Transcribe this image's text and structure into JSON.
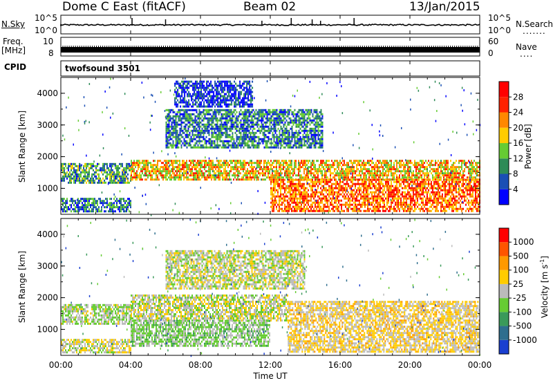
{
  "header": {
    "title": "Dome C East (fitACF)",
    "beam": "Beam 02",
    "date": "13/Jan/2015"
  },
  "nsky_panel": {
    "label": "N.Sky",
    "ticks_left": [
      "10^5",
      "10^0"
    ],
    "ticks_right": [
      "10^5",
      "10^0"
    ],
    "right_label": "N.Search",
    "right_dots": "......."
  },
  "freq_panel": {
    "label_line1": "Freq.",
    "label_line2": "[MHz]",
    "ticks_left": [
      "10",
      "8"
    ],
    "ticks_right": [
      "60",
      "0"
    ],
    "right_label": "Nave",
    "right_dots": "...."
  },
  "cpid": {
    "label": "CPID",
    "value": "twofsound 3501"
  },
  "power_panel": {
    "ylabel": "Slant Range [km]",
    "yticks": [
      "4000",
      "3000",
      "2000",
      "1000"
    ],
    "colorbar_label": "Power [dB]",
    "colorbar_ticks": [
      "28",
      "24",
      "20",
      "16",
      "12",
      "8",
      "4"
    ],
    "colors": [
      "#0000ff",
      "#1a4fb5",
      "#2e8b57",
      "#66cc33",
      "#ffcc00",
      "#ff8800",
      "#ff2200",
      "#ff0000"
    ]
  },
  "velocity_panel": {
    "ylabel": "Slant Range [km]",
    "yticks": [
      "4000",
      "3000",
      "2000",
      "1000"
    ],
    "colorbar_label": "Velocity [m s^-1]",
    "colorbar_ticks": [
      "1000",
      "500",
      "100",
      "25",
      "-25",
      "-100",
      "-500",
      "-1000"
    ],
    "colors": [
      "#1a3fd0",
      "#2e6e8e",
      "#3a9a5a",
      "#66cc33",
      "#bbbbbb",
      "#ffcc00",
      "#ff9900",
      "#ff5500",
      "#ff0000"
    ]
  },
  "xaxis": {
    "ticks": [
      "00:00",
      "04:00",
      "08:00",
      "12:00",
      "16:00",
      "20:00",
      "00:00"
    ],
    "label": "Time UT"
  },
  "chart_data": {
    "type": "heatmap",
    "x_range_hours": [
      0,
      24
    ],
    "y_range_km": [
      180,
      4500
    ],
    "panels": [
      {
        "quantity": "Power",
        "unit": "dB",
        "scale": [
          0,
          30
        ],
        "bands": [
          {
            "t0": 0,
            "t1": 4,
            "r0": 1200,
            "r1": 1800,
            "level": 10
          },
          {
            "t0": 0,
            "t1": 4,
            "r0": 300,
            "r1": 700,
            "level": 8
          },
          {
            "t0": 4,
            "t1": 24,
            "r0": 1300,
            "r1": 1900,
            "level": 18
          },
          {
            "t0": 6,
            "t1": 15,
            "r0": 2300,
            "r1": 3500,
            "level": 8
          },
          {
            "t0": 12,
            "t1": 24,
            "r0": 300,
            "r1": 1300,
            "level": 22
          },
          {
            "t0": 6.5,
            "t1": 11,
            "r0": 3600,
            "r1": 4400,
            "level": 4
          }
        ]
      },
      {
        "quantity": "Velocity",
        "unit": "m s^-1",
        "scale": [
          -1000,
          1000
        ],
        "bands": [
          {
            "t0": 0,
            "t1": 4,
            "r0": 1200,
            "r1": 1800,
            "level": -80
          },
          {
            "t0": 0,
            "t1": 4,
            "r0": 300,
            "r1": 700,
            "level": 60
          },
          {
            "t0": 4,
            "t1": 13,
            "r0": 1300,
            "r1": 2100,
            "level": 0
          },
          {
            "t0": 4,
            "t1": 12,
            "r0": 500,
            "r1": 1300,
            "level": -150
          },
          {
            "t0": 6,
            "t1": 14,
            "r0": 2300,
            "r1": 3500,
            "level": 0
          },
          {
            "t0": 13,
            "t1": 24,
            "r0": 300,
            "r1": 1900,
            "level": 150
          }
        ]
      }
    ]
  }
}
